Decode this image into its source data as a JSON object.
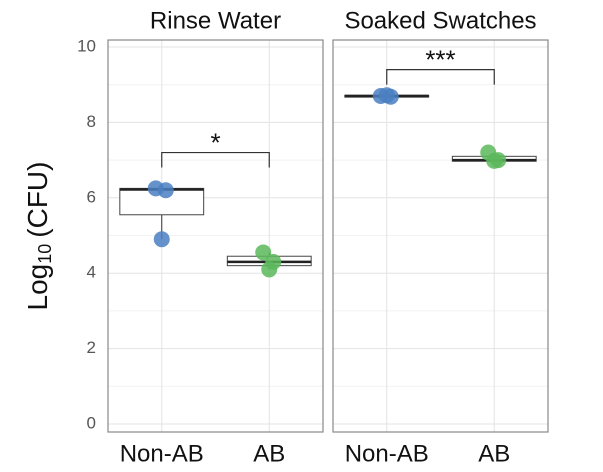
{
  "chart_data": [
    {
      "type": "box",
      "title": "Rinse Water",
      "ylabel": {
        "base": "Log",
        "subscript": "10",
        "unit": "(CFU)"
      },
      "ylim": [
        0,
        10
      ],
      "yticks": [
        0,
        2,
        4,
        6,
        8,
        10
      ],
      "grid": true,
      "categories": [
        "Non-AB",
        "AB"
      ],
      "colors": [
        "#4a7fc1",
        "#5cb85c"
      ],
      "boxes": [
        {
          "min": 4.9,
          "q1": 5.55,
          "median": 6.22,
          "q3": 6.25,
          "max": 6.27
        },
        {
          "min": 4.1,
          "q1": 4.2,
          "median": 4.3,
          "q3": 4.45,
          "max": 4.55
        }
      ],
      "points": [
        [
          6.25,
          6.2,
          4.9
        ],
        [
          4.55,
          4.3,
          4.1
        ]
      ],
      "annotation": {
        "label": "*",
        "y": 7.2
      }
    },
    {
      "type": "box",
      "title": "Soaked Swatches",
      "categories": [
        "Non-AB",
        "AB"
      ],
      "colors": [
        "#4a7fc1",
        "#5cb85c"
      ],
      "boxes": [
        {
          "min": 8.65,
          "q1": 8.67,
          "median": 8.7,
          "q3": 8.72,
          "max": 8.73
        },
        {
          "min": 6.95,
          "q1": 6.97,
          "median": 7.0,
          "q3": 7.1,
          "max": 7.2
        }
      ],
      "points": [
        [
          8.7,
          8.68,
          8.72
        ],
        [
          7.2,
          7.0,
          6.98
        ]
      ],
      "annotation": {
        "label": "***",
        "y": 9.4
      }
    }
  ]
}
